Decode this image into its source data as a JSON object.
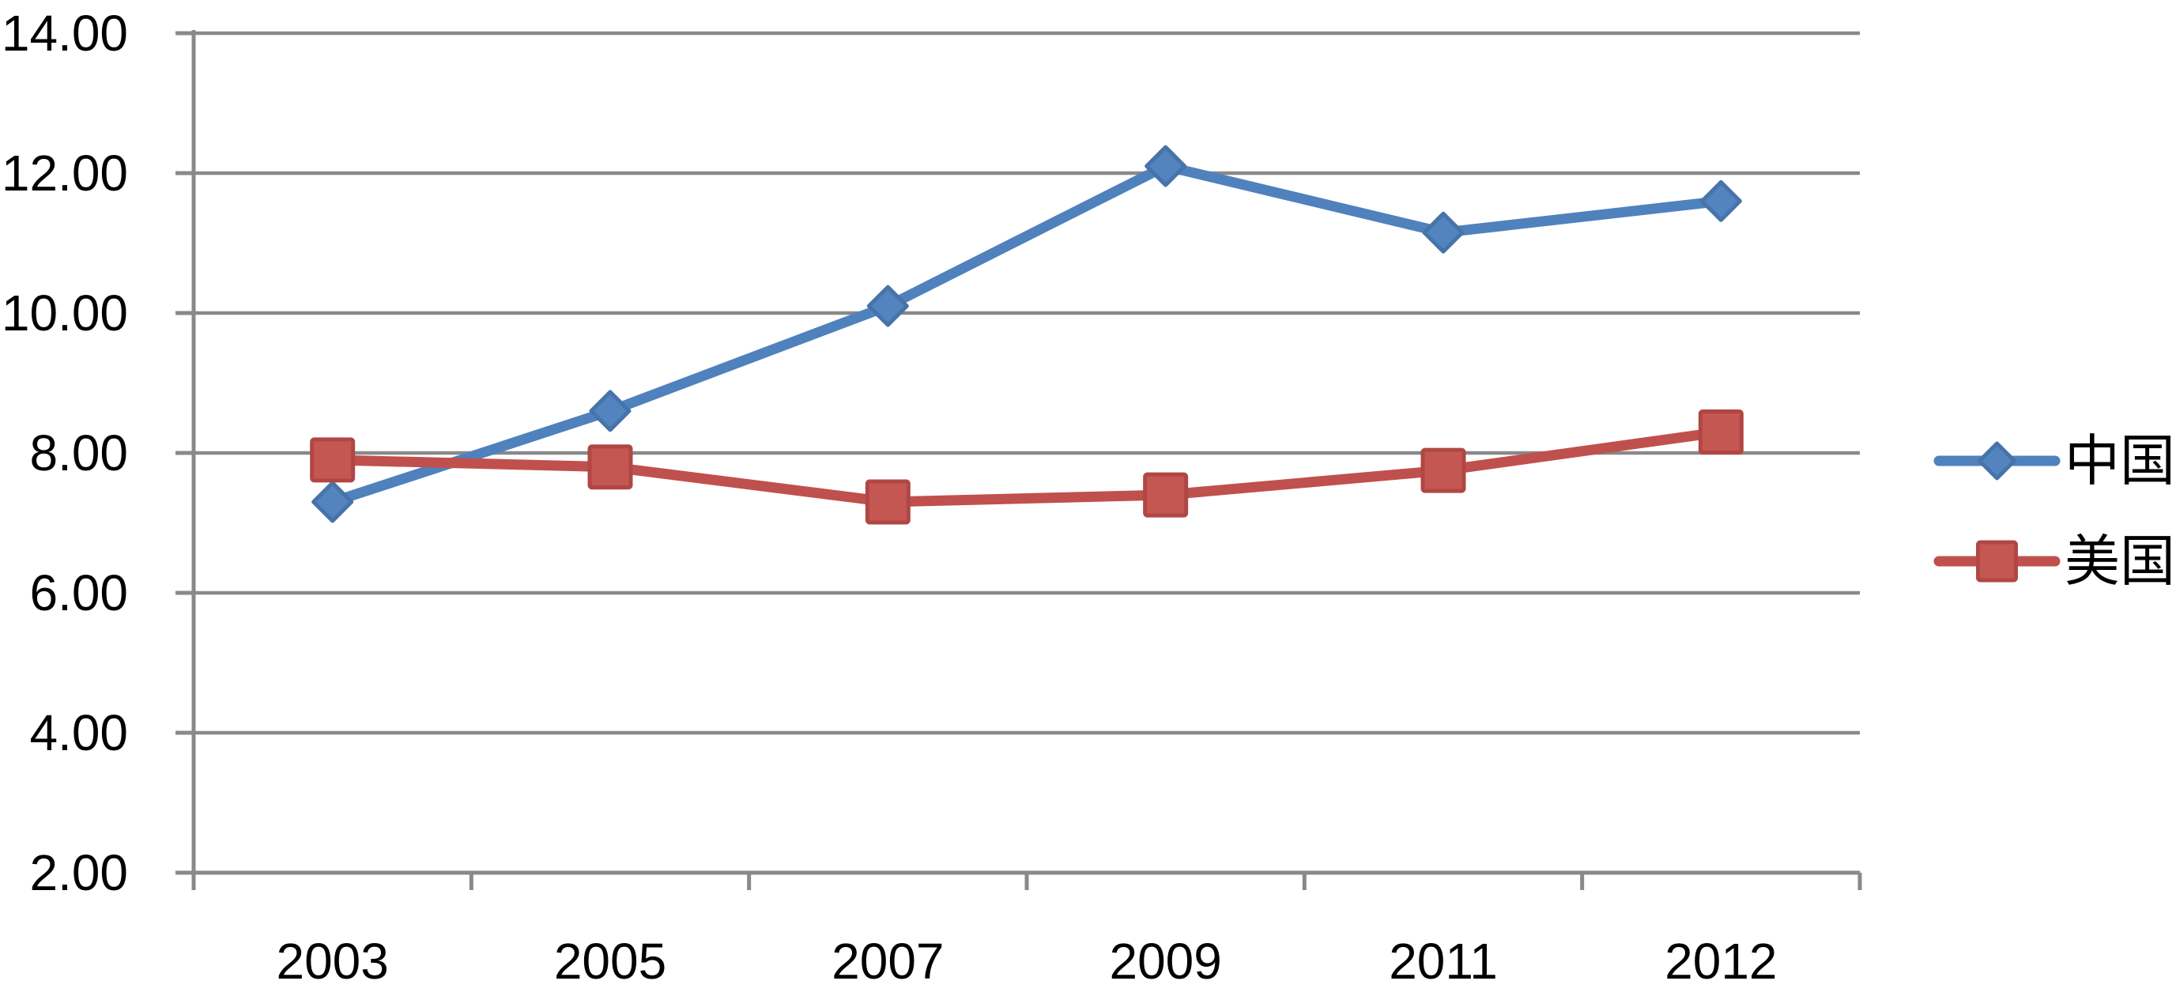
{
  "chart_data": {
    "type": "line",
    "title": "",
    "xlabel": "",
    "ylabel": "",
    "categories": [
      "2003",
      "2005",
      "2007",
      "2009",
      "2011",
      "2012"
    ],
    "series": [
      {
        "name": "中国",
        "values": [
          7.3,
          8.6,
          10.1,
          12.1,
          11.15,
          11.6
        ],
        "color": "#4F81BD",
        "marker": "diamond",
        "marker_fill": "#5384C0",
        "marker_border": "#4674A8"
      },
      {
        "name": "美国",
        "values": [
          7.9,
          7.8,
          7.3,
          7.4,
          7.75,
          8.3
        ],
        "color": "#C0504D",
        "marker": "square",
        "marker_fill": "#C55752",
        "marker_border": "#B04744"
      }
    ],
    "ylim": [
      2,
      14
    ],
    "ytick_step": 2,
    "ytick_labels": [
      "2.00",
      "4.00",
      "6.00",
      "8.00",
      "10.00",
      "12.00",
      "14.00"
    ],
    "grid": true,
    "legend_position": "right",
    "axis_color": "#898989",
    "text_color": "#000000",
    "background": "#FFFFFF"
  }
}
